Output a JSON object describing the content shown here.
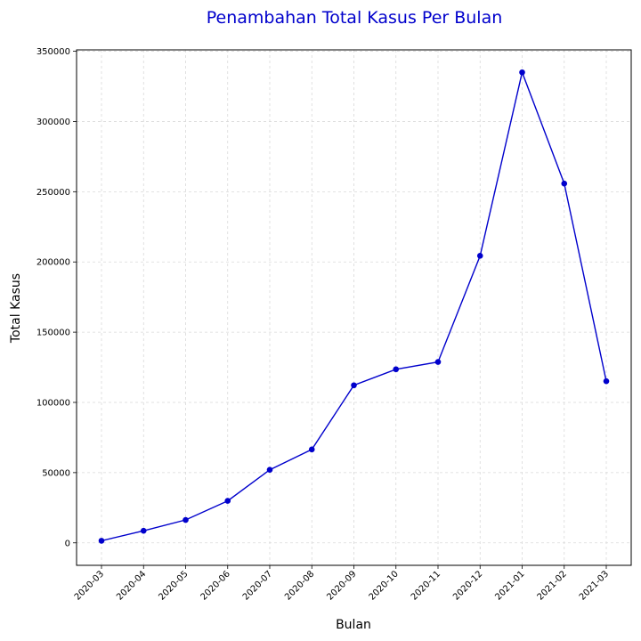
{
  "chart_data": {
    "type": "line",
    "title": "Penambahan Total Kasus Per Bulan",
    "xlabel": "Bulan",
    "ylabel": "Total Kasus",
    "categories": [
      "2020-03",
      "2020-04",
      "2020-05",
      "2020-06",
      "2020-07",
      "2020-08",
      "2020-09",
      "2020-10",
      "2020-11",
      "2020-12",
      "2021-01",
      "2021-02",
      "2021-03"
    ],
    "series": [
      {
        "values": [
          1500,
          8600,
          16300,
          29900,
          52000,
          66500,
          112200,
          123600,
          128800,
          204400,
          335000,
          255800,
          115100
        ],
        "color": "#0000cc"
      }
    ],
    "ylim": [
      -16000,
      351000
    ],
    "yticks": [
      0,
      50000,
      100000,
      150000,
      200000,
      250000,
      300000,
      350000
    ],
    "grid": true,
    "marker": "circle"
  }
}
